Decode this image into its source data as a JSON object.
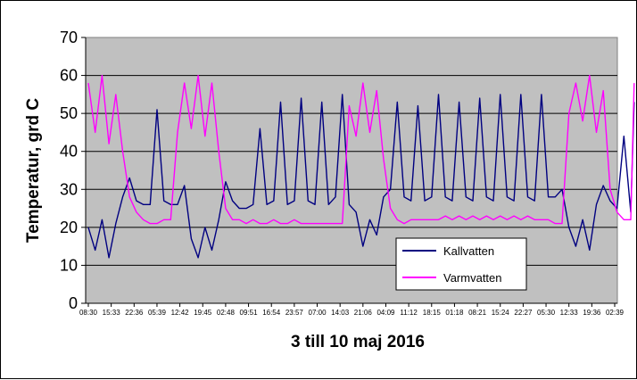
{
  "chart_data": {
    "type": "line",
    "title": "",
    "xlabel": "3 till 10 maj 2016",
    "ylabel": "Temperatur, grd C",
    "ylim": [
      0,
      70
    ],
    "yticks": [
      0,
      10,
      20,
      30,
      40,
      50,
      60,
      70
    ],
    "grid": "horizontal",
    "legend_position": "bottom-right",
    "plot_background": "#c0c0c0",
    "x_tick_labels": [
      "08:30",
      "15:33",
      "22:36",
      "05:39",
      "12:42",
      "19:45",
      "02:48",
      "09:51",
      "16:54",
      "23:57",
      "07:00",
      "14:03",
      "21:06",
      "04:09",
      "11:12",
      "18:15",
      "01:18",
      "08:21",
      "15:24",
      "22:27",
      "05:30",
      "12:33",
      "19:36",
      "02:39"
    ],
    "series": [
      {
        "name": "Kallvatten",
        "color": "#000080",
        "x_index": [
          0,
          0.3,
          0.6,
          0.9,
          1.2,
          1.5,
          1.8,
          2.1,
          2.4,
          2.7,
          3.0,
          3.3,
          3.6,
          3.9,
          4.2,
          4.5,
          4.8,
          5.1,
          5.4,
          5.7,
          6.0,
          6.3,
          6.6,
          6.9,
          7.2,
          7.5,
          7.8,
          8.1,
          8.4,
          8.7,
          9.0,
          9.3,
          9.6,
          9.9,
          10.2,
          10.5,
          10.8,
          11.1,
          11.4,
          11.7,
          12.0,
          12.3,
          12.6,
          12.9,
          13.2,
          13.5,
          13.8,
          14.1,
          14.4,
          14.7,
          15.0,
          15.3,
          15.6,
          15.9,
          16.2,
          16.5,
          16.8,
          17.1,
          17.4,
          17.7,
          18.0,
          18.3,
          18.6,
          18.9,
          19.2,
          19.5,
          19.8,
          20.1,
          20.4,
          20.7,
          21.0,
          21.3,
          21.6,
          21.9,
          22.2,
          22.5,
          22.8,
          23.1,
          23.4,
          23.7,
          23.85
        ],
        "values": [
          20,
          14,
          22,
          12,
          21,
          28,
          33,
          27,
          26,
          26,
          51,
          27,
          26,
          26,
          31,
          17,
          12,
          20,
          14,
          22,
          32,
          27,
          25,
          25,
          26,
          46,
          26,
          27,
          53,
          26,
          27,
          54,
          27,
          26,
          53,
          26,
          28,
          55,
          26,
          24,
          15,
          22,
          18,
          28,
          30,
          53,
          28,
          27,
          52,
          27,
          28,
          55,
          28,
          27,
          53,
          28,
          27,
          54,
          28,
          27,
          55,
          28,
          27,
          55,
          28,
          27,
          55,
          28,
          28,
          30,
          20,
          15,
          22,
          14,
          26,
          31,
          27,
          25,
          44,
          24,
          53
        ]
      },
      {
        "name": "Varmvatten",
        "color": "#ff00ff",
        "x_index": [
          0,
          0.3,
          0.6,
          0.9,
          1.2,
          1.5,
          1.8,
          2.1,
          2.4,
          2.7,
          3.0,
          3.3,
          3.6,
          3.9,
          4.2,
          4.5,
          4.8,
          5.1,
          5.4,
          5.7,
          6.0,
          6.3,
          6.6,
          6.9,
          7.2,
          7.5,
          7.8,
          8.1,
          8.4,
          8.7,
          9.0,
          9.3,
          9.6,
          9.9,
          10.2,
          10.5,
          10.8,
          11.1,
          11.4,
          11.7,
          12.0,
          12.3,
          12.6,
          12.9,
          13.2,
          13.5,
          13.8,
          14.1,
          14.4,
          14.7,
          15.0,
          15.3,
          15.6,
          15.9,
          16.2,
          16.5,
          16.8,
          17.1,
          17.4,
          17.7,
          18.0,
          18.3,
          18.6,
          18.9,
          19.2,
          19.5,
          19.8,
          20.1,
          20.4,
          20.7,
          21.0,
          21.3,
          21.6,
          21.9,
          22.2,
          22.5,
          22.8,
          23.1,
          23.4,
          23.7,
          23.85
        ],
        "values": [
          58,
          45,
          60,
          42,
          55,
          40,
          28,
          24,
          22,
          21,
          21,
          22,
          22,
          45,
          58,
          46,
          60,
          44,
          58,
          40,
          25,
          22,
          22,
          21,
          22,
          21,
          21,
          22,
          21,
          21,
          22,
          21,
          21,
          21,
          21,
          21,
          21,
          21,
          52,
          44,
          58,
          45,
          56,
          38,
          25,
          22,
          21,
          22,
          22,
          22,
          22,
          22,
          23,
          22,
          23,
          22,
          23,
          22,
          23,
          22,
          23,
          22,
          23,
          22,
          23,
          22,
          22,
          22,
          21,
          21,
          50,
          58,
          48,
          60,
          45,
          56,
          30,
          24,
          22,
          22,
          58
        ]
      }
    ]
  },
  "legend": {
    "items": [
      {
        "label": "Kallvatten",
        "color": "#000080"
      },
      {
        "label": "Varmvatten",
        "color": "#ff00ff"
      }
    ]
  }
}
